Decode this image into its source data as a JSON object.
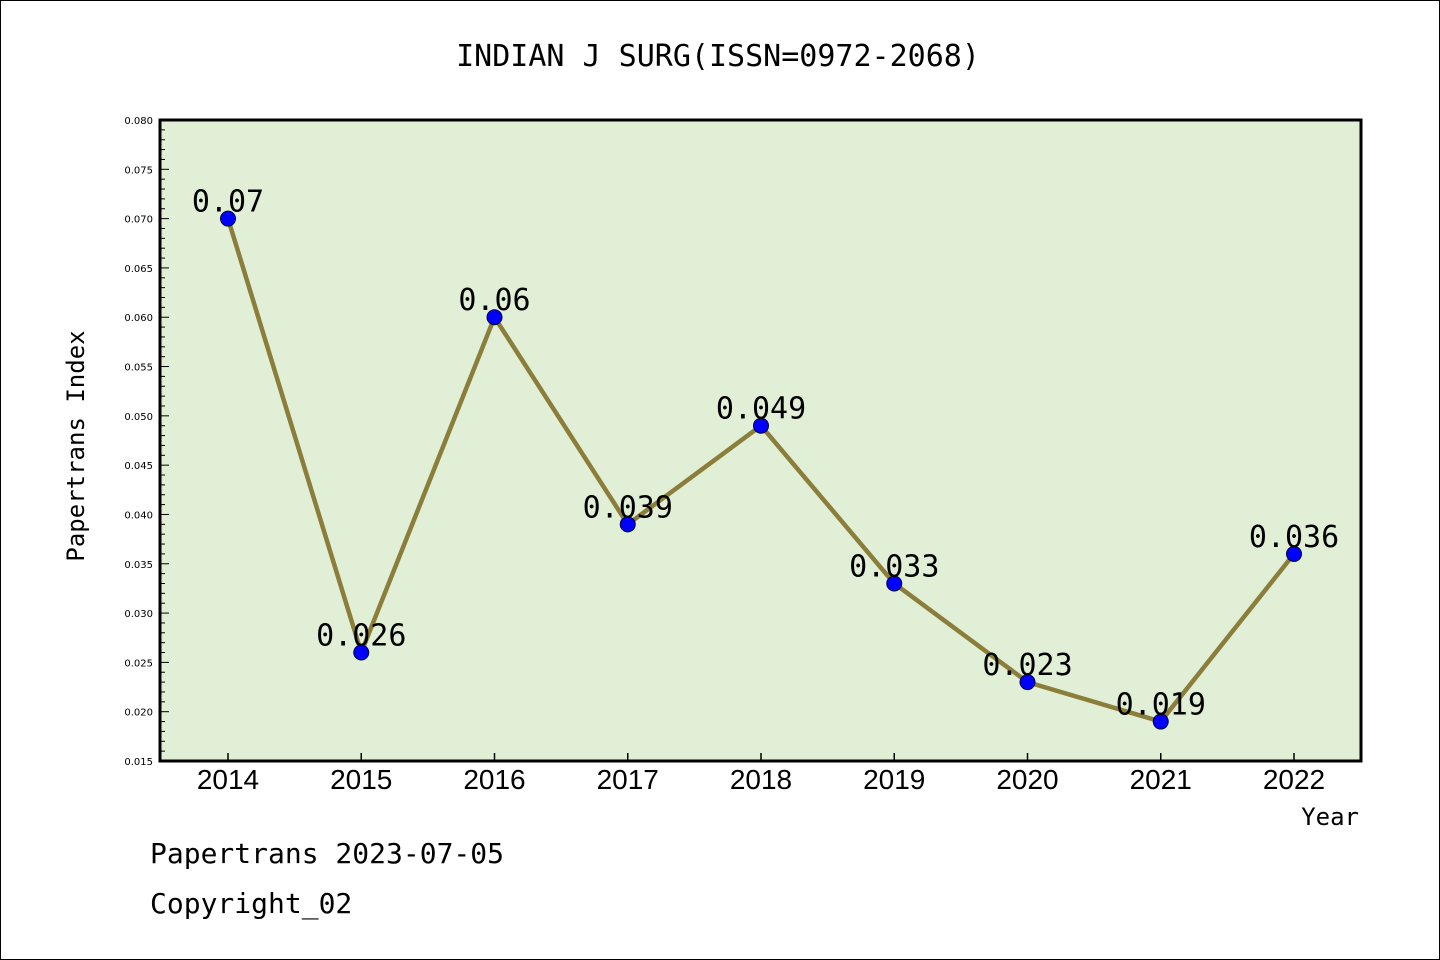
{
  "chart_data": {
    "type": "line",
    "title": "INDIAN J SURG(ISSN=0972-2068)",
    "xlabel": "Year",
    "ylabel": "Papertrans Index",
    "categories": [
      "2014",
      "2015",
      "2016",
      "2017",
      "2018",
      "2019",
      "2020",
      "2021",
      "2022"
    ],
    "values": [
      0.07,
      0.026,
      0.06,
      0.039,
      0.049,
      0.033,
      0.023,
      0.019,
      0.036
    ],
    "data_labels": [
      "0.07",
      "0.026",
      "0.06",
      "0.039",
      "0.049",
      "0.033",
      "0.023",
      "0.019",
      "0.036"
    ],
    "ylim": [
      0.015,
      0.08
    ],
    "yticks": [
      "0.015",
      "0.020",
      "0.025",
      "0.030",
      "0.035",
      "0.040",
      "0.045",
      "0.050",
      "0.055",
      "0.060",
      "0.065",
      "0.070",
      "0.075",
      "0.080"
    ],
    "grid": false,
    "legend": "none"
  },
  "footer": {
    "line1": "Papertrans 2023-07-05",
    "line2": "Copyright_02"
  },
  "colors": {
    "plot_background": "#e1efd6",
    "line": "#8b7d3a",
    "marker": "#0000ff",
    "axis": "#000000"
  }
}
